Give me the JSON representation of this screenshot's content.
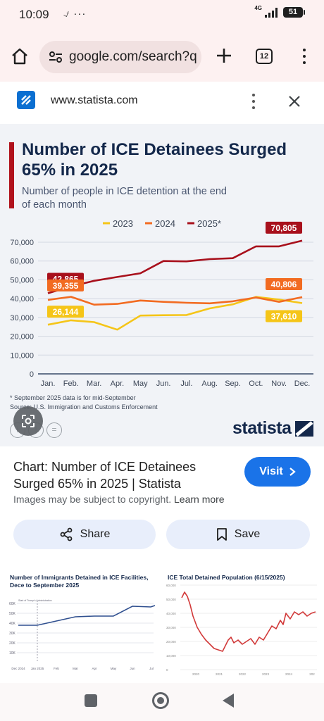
{
  "status_bar": {
    "time": "10:09",
    "left_icons": "⍻ ···",
    "network": "4G",
    "battery": "51"
  },
  "browser": {
    "url": "google.com/search?q",
    "tab_count": "12"
  },
  "site": {
    "domain": "www.statista.com"
  },
  "chart_title": "Number of ICE Detainees Surged 65% in 2025",
  "chart_subtitle": "Number of people in ICE detention at the end of each month",
  "footnote": "* September 2025 data is for mid-September",
  "source": "Source: U.S. Immigration and Customs Enforcement",
  "brand": "statista",
  "chart_data": {
    "type": "line",
    "title": "Number of ICE Detainees Surged 65% in 2025",
    "subtitle": "Number of people in ICE detention at the end of each month",
    "categories": [
      "Jan.",
      "Feb.",
      "Mar.",
      "Apr.",
      "May",
      "Jun.",
      "Jul.",
      "Aug.",
      "Sep.",
      "Oct.",
      "Nov.",
      "Dec."
    ],
    "yticks": [
      "0",
      "10,000",
      "20,000",
      "30,000",
      "40,000",
      "50,000",
      "60,000",
      "70,000"
    ],
    "ylim": [
      0,
      70000
    ],
    "grid": true,
    "legend_position": "top-right",
    "series": [
      {
        "name": "2023",
        "color": "#f5c518",
        "values": [
          26144,
          28500,
          27500,
          23500,
          31000,
          31200,
          31300,
          34800,
          37000,
          40900,
          39500,
          37610
        ]
      },
      {
        "name": "2024",
        "color": "#f26b21",
        "values": [
          39355,
          41000,
          36800,
          37200,
          39000,
          38300,
          37800,
          37500,
          38600,
          40600,
          38300,
          40806
        ]
      },
      {
        "name": "2025*",
        "color": "#a8101c",
        "values": [
          42865,
          46500,
          49500,
          51500,
          53500,
          60000,
          59800,
          61000,
          61500,
          67800,
          67800,
          70805
        ]
      }
    ],
    "labels": [
      {
        "text": "42,865",
        "series": "2025*",
        "month": "Jan.",
        "color": "#a8101c"
      },
      {
        "text": "39,355",
        "series": "2024",
        "month": "Jan.",
        "color": "#f26b21"
      },
      {
        "text": "26,144",
        "series": "2023",
        "month": "Jan.",
        "color": "#f5c518"
      },
      {
        "text": "70,805",
        "series": "2025*",
        "month": "Dec.",
        "color": "#a8101c"
      },
      {
        "text": "40,806",
        "series": "2024",
        "month": "Dec.",
        "color": "#f26b21"
      },
      {
        "text": "37,610",
        "series": "2023",
        "month": "Dec.",
        "color": "#f5c518"
      }
    ]
  },
  "result": {
    "title": "Chart: Number of ICE Detainees Surged 65% in 2025 | Statista",
    "note": "Images may be subject to copyright.",
    "learn_more": "Learn more",
    "visit_label": "Visit",
    "share_label": "Share",
    "save_label": "Save"
  },
  "related": [
    {
      "title": "Number of Immigrants Detained in ICE Facilities, Dece to September 2025",
      "x_ticks": [
        "Dec 2024",
        "Jan 2025",
        "Feb",
        "Mar",
        "Apr",
        "May",
        "Jun",
        "Jul"
      ],
      "y_ticks": [
        "60K",
        "50K",
        "40K",
        "30K",
        "20K",
        "10K"
      ],
      "annotation": "Start of Trump's Administration"
    },
    {
      "title": "ICE Total Detained Population (6/15/2025)",
      "x_ticks": [
        "2020",
        "2021",
        "2022",
        "2023",
        "2024",
        "202"
      ],
      "y_ticks": [
        "60,000",
        "50,000",
        "40,000",
        "30,000",
        "20,000",
        "10,000",
        "0"
      ]
    }
  ]
}
